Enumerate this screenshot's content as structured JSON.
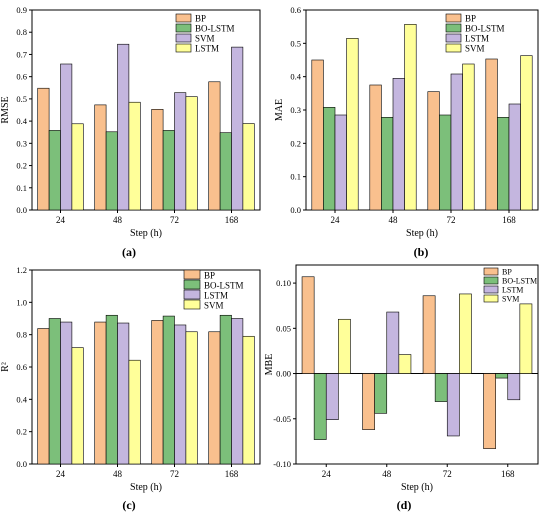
{
  "colors": {
    "BP": "#f9c08e",
    "BO-LSTM": "#7cbf7a",
    "SVM_LSTM_purple": "#c4b6df",
    "yellow": "#ffff99",
    "axis": "#000000"
  },
  "chart_data": [
    {
      "type": "bar",
      "panel_label": "(a)",
      "xlabel": "Step (h)",
      "ylabel": "RMSE",
      "ylim": [
        0,
        0.9
      ],
      "yticks": [
        0.0,
        0.1,
        0.2,
        0.3,
        0.4,
        0.5,
        0.6,
        0.7,
        0.8,
        0.9
      ],
      "ytick_labels": [
        "0.0",
        "0.1",
        "0.2",
        "0.3",
        "0.4",
        "0.5",
        "0.6",
        "0.7",
        "0.8",
        "0.9"
      ],
      "categories": [
        "24",
        "48",
        "72",
        "168"
      ],
      "legend_position": "top-right",
      "series": [
        {
          "name": "BP",
          "color": "#f9c08e",
          "values": [
            0.548,
            0.473,
            0.453,
            0.577
          ]
        },
        {
          "name": "BO-LSTM",
          "color": "#7cbf7a",
          "values": [
            0.358,
            0.352,
            0.358,
            0.348
          ]
        },
        {
          "name": "SVM",
          "color": "#c4b6df",
          "values": [
            0.657,
            0.746,
            0.528,
            0.733
          ]
        },
        {
          "name": "LSTM",
          "color": "#ffff99",
          "values": [
            0.388,
            0.485,
            0.51,
            0.389
          ]
        }
      ]
    },
    {
      "type": "bar",
      "panel_label": "(b)",
      "xlabel": "Step (h)",
      "ylabel": "MAE",
      "ylim": [
        0,
        0.6
      ],
      "yticks": [
        0.0,
        0.1,
        0.2,
        0.3,
        0.4,
        0.5,
        0.6
      ],
      "ytick_labels": [
        "0.0",
        "0.1",
        "0.2",
        "0.3",
        "0.4",
        "0.5",
        "0.6"
      ],
      "categories": [
        "24",
        "48",
        "72",
        "168"
      ],
      "legend_position": "top-right",
      "series": [
        {
          "name": "BP",
          "color": "#f9c08e",
          "values": [
            0.45,
            0.375,
            0.355,
            0.453
          ]
        },
        {
          "name": "BO-LSTM",
          "color": "#7cbf7a",
          "values": [
            0.308,
            0.278,
            0.285,
            0.278
          ]
        },
        {
          "name": "LSTM",
          "color": "#c4b6df",
          "values": [
            0.285,
            0.395,
            0.408,
            0.318
          ]
        },
        {
          "name": "SVM",
          "color": "#ffff99",
          "values": [
            0.515,
            0.557,
            0.438,
            0.463
          ]
        }
      ]
    },
    {
      "type": "bar",
      "panel_label": "(c)",
      "xlabel": "Step (h)",
      "ylabel": "R²",
      "ylim": [
        0,
        1.2
      ],
      "yticks": [
        0.0,
        0.2,
        0.4,
        0.6,
        0.8,
        1.0,
        1.2
      ],
      "ytick_labels": [
        "0.0",
        "0.2",
        "0.4",
        "0.6",
        "0.8",
        "1.0",
        "1.2"
      ],
      "categories": [
        "24",
        "48",
        "72",
        "168"
      ],
      "legend_position": "top-right",
      "series": [
        {
          "name": "BP",
          "color": "#f9c08e",
          "values": [
            0.838,
            0.878,
            0.888,
            0.818
          ]
        },
        {
          "name": "BO-LSTM",
          "color": "#7cbf7a",
          "values": [
            0.9,
            0.92,
            0.915,
            0.92
          ]
        },
        {
          "name": "LSTM",
          "color": "#c4b6df",
          "values": [
            0.878,
            0.872,
            0.86,
            0.9
          ]
        },
        {
          "name": "SVM",
          "color": "#ffff99",
          "values": [
            0.72,
            0.642,
            0.818,
            0.79
          ]
        }
      ]
    },
    {
      "type": "bar",
      "panel_label": "(d)",
      "xlabel": "Step (h)",
      "ylabel": "MBE",
      "ylim": [
        -0.1,
        0.12
      ],
      "yticks": [
        -0.1,
        -0.05,
        0.0,
        0.05,
        0.1
      ],
      "ytick_labels": [
        "-0.10",
        "-0.05",
        "0.00",
        "0.05",
        "0.10"
      ],
      "zero_line": true,
      "categories": [
        "24",
        "48",
        "72",
        "168"
      ],
      "legend_position": "top-right",
      "series": [
        {
          "name": "BP",
          "color": "#f9c08e",
          "values": [
            0.107,
            -0.062,
            0.086,
            -0.083
          ]
        },
        {
          "name": "BO-LSTM",
          "color": "#7cbf7a",
          "values": [
            -0.073,
            -0.044,
            -0.031,
            -0.005
          ]
        },
        {
          "name": "LSTM",
          "color": "#c4b6df",
          "values": [
            -0.051,
            0.068,
            -0.069,
            -0.029
          ]
        },
        {
          "name": "SVM",
          "color": "#ffff99",
          "values": [
            0.06,
            0.021,
            0.088,
            0.077
          ]
        }
      ]
    }
  ]
}
